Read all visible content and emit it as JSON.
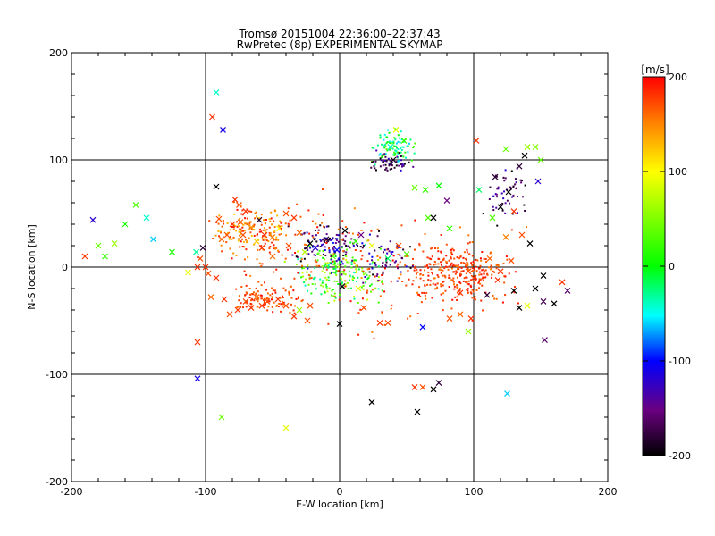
{
  "chart_data": {
    "type": "scatter",
    "title": "Tromsø 20151004 22:36:00–22:37:43",
    "subtitle": "RwPretec (8p) EXPERIMENTAL SKYMAP",
    "xlabel": "E-W location [km]",
    "ylabel": "N-S location [km]",
    "xlim": [
      -200,
      200
    ],
    "ylim": [
      -200,
      200
    ],
    "x_ticks": [
      -200,
      -100,
      0,
      100,
      200
    ],
    "y_ticks": [
      -200,
      -100,
      0,
      100,
      200
    ],
    "grid": true,
    "colorbar": {
      "label": "[m/s]",
      "range": [
        -200,
        200
      ],
      "ticks": [
        200,
        100,
        0,
        -100,
        -200
      ],
      "colormap": "black-purple-blue-cyan-green-yellow-red"
    },
    "marker_types": [
      "dot",
      "x"
    ],
    "points": [
      {
        "x": -190,
        "y": 10,
        "v": 180,
        "m": "x"
      },
      {
        "x": -184,
        "y": 44,
        "v": -120,
        "m": "x"
      },
      {
        "x": -180,
        "y": 20,
        "v": 40,
        "m": "x"
      },
      {
        "x": -175,
        "y": 10,
        "v": 20,
        "m": "x"
      },
      {
        "x": -168,
        "y": 22,
        "v": 60,
        "m": "x"
      },
      {
        "x": -160,
        "y": 40,
        "v": 10,
        "m": "x"
      },
      {
        "x": -152,
        "y": 58,
        "v": 30,
        "m": "x"
      },
      {
        "x": -144,
        "y": 46,
        "v": -40,
        "m": "x"
      },
      {
        "x": -139,
        "y": 26,
        "v": -60,
        "m": "x"
      },
      {
        "x": -125,
        "y": 14,
        "v": 10,
        "m": "x"
      },
      {
        "x": -113,
        "y": -5,
        "v": 90,
        "m": "x"
      },
      {
        "x": -107,
        "y": 14,
        "v": -30,
        "m": "x"
      },
      {
        "x": -102,
        "y": 18,
        "v": -180,
        "m": "x"
      },
      {
        "x": -100,
        "y": 0,
        "v": 180,
        "m": "x"
      },
      {
        "x": -98,
        "y": -6,
        "v": 170,
        "m": "x"
      },
      {
        "x": -92,
        "y": 163,
        "v": -40,
        "m": "x"
      },
      {
        "x": -95,
        "y": 140,
        "v": 180,
        "m": "x"
      },
      {
        "x": -92,
        "y": 75,
        "v": -200,
        "m": "x"
      },
      {
        "x": -90,
        "y": 45,
        "v": 170,
        "m": "x"
      },
      {
        "x": -87,
        "y": 128,
        "v": -110,
        "m": "x"
      },
      {
        "x": -78,
        "y": 63,
        "v": 180,
        "m": "x"
      },
      {
        "x": -74,
        "y": 42,
        "v": 160,
        "m": "x"
      },
      {
        "x": -72,
        "y": 30,
        "v": 170,
        "m": "x"
      },
      {
        "x": -66,
        "y": 37,
        "v": 140,
        "m": "x"
      },
      {
        "x": -62,
        "y": 24,
        "v": 120,
        "m": "x"
      },
      {
        "x": -60,
        "y": 44,
        "v": -180,
        "m": "x"
      },
      {
        "x": -56,
        "y": 30,
        "v": 180,
        "m": "x"
      },
      {
        "x": -50,
        "y": 28,
        "v": 150,
        "m": "x"
      },
      {
        "x": -45,
        "y": 36,
        "v": 100,
        "m": "x"
      },
      {
        "x": -40,
        "y": 50,
        "v": 170,
        "m": "x"
      },
      {
        "x": -34,
        "y": 46,
        "v": 180,
        "m": "x"
      },
      {
        "x": -30,
        "y": 32,
        "v": 160,
        "m": "x"
      },
      {
        "x": -26,
        "y": 14,
        "v": 70,
        "m": "x"
      },
      {
        "x": -22,
        "y": 22,
        "v": -200,
        "m": "x"
      },
      {
        "x": -18,
        "y": 18,
        "v": -120,
        "m": "x"
      },
      {
        "x": -10,
        "y": 26,
        "v": -180,
        "m": "x"
      },
      {
        "x": -5,
        "y": 10,
        "v": 30,
        "m": "x"
      },
      {
        "x": -2,
        "y": 16,
        "v": -100,
        "m": "x"
      },
      {
        "x": 4,
        "y": 34,
        "v": -200,
        "m": "x"
      },
      {
        "x": 12,
        "y": 24,
        "v": 20,
        "m": "x"
      },
      {
        "x": 16,
        "y": 30,
        "v": -150,
        "m": "x"
      },
      {
        "x": 24,
        "y": 20,
        "v": 90,
        "m": "x"
      },
      {
        "x": 36,
        "y": 8,
        "v": -20,
        "m": "x"
      },
      {
        "x": 44,
        "y": 20,
        "v": 170,
        "m": "x"
      },
      {
        "x": 50,
        "y": 12,
        "v": 30,
        "m": "x"
      },
      {
        "x": 40,
        "y": 100,
        "v": -190,
        "m": "x"
      },
      {
        "x": 38,
        "y": 112,
        "v": -40,
        "m": "x"
      },
      {
        "x": 42,
        "y": 128,
        "v": 90,
        "m": "x"
      },
      {
        "x": 48,
        "y": 118,
        "v": 20,
        "m": "x"
      },
      {
        "x": 56,
        "y": 74,
        "v": 40,
        "m": "x"
      },
      {
        "x": 64,
        "y": 72,
        "v": 20,
        "m": "x"
      },
      {
        "x": 66,
        "y": 46,
        "v": 30,
        "m": "x"
      },
      {
        "x": 74,
        "y": 76,
        "v": 0,
        "m": "x"
      },
      {
        "x": 70,
        "y": 46,
        "v": -200,
        "m": "x"
      },
      {
        "x": 80,
        "y": 62,
        "v": -150,
        "m": "x"
      },
      {
        "x": 82,
        "y": 36,
        "v": 20,
        "m": "x"
      },
      {
        "x": 102,
        "y": 118,
        "v": 180,
        "m": "x"
      },
      {
        "x": 104,
        "y": 72,
        "v": -20,
        "m": "x"
      },
      {
        "x": 114,
        "y": 46,
        "v": 30,
        "m": "x"
      },
      {
        "x": 116,
        "y": 84,
        "v": -180,
        "m": "x"
      },
      {
        "x": 120,
        "y": 56,
        "v": -200,
        "m": "x"
      },
      {
        "x": 124,
        "y": 110,
        "v": 40,
        "m": "x"
      },
      {
        "x": 126,
        "y": 70,
        "v": -200,
        "m": "x"
      },
      {
        "x": 130,
        "y": 52,
        "v": 180,
        "m": "x"
      },
      {
        "x": 134,
        "y": 94,
        "v": -180,
        "m": "x"
      },
      {
        "x": 136,
        "y": 30,
        "v": 170,
        "m": "x"
      },
      {
        "x": 138,
        "y": 104,
        "v": -200,
        "m": "x"
      },
      {
        "x": 140,
        "y": 112,
        "v": 60,
        "m": "x"
      },
      {
        "x": 142,
        "y": 22,
        "v": -200,
        "m": "x"
      },
      {
        "x": 146,
        "y": 112,
        "v": 50,
        "m": "x"
      },
      {
        "x": 148,
        "y": 80,
        "v": -120,
        "m": "x"
      },
      {
        "x": 150,
        "y": 100,
        "v": 40,
        "m": "x"
      },
      {
        "x": 112,
        "y": 8,
        "v": 160,
        "m": "x"
      },
      {
        "x": 120,
        "y": -4,
        "v": 180,
        "m": "x"
      },
      {
        "x": 124,
        "y": 28,
        "v": 150,
        "m": "x"
      },
      {
        "x": 128,
        "y": 6,
        "v": 170,
        "m": "x"
      },
      {
        "x": 130,
        "y": -22,
        "v": -200,
        "m": "x"
      },
      {
        "x": 134,
        "y": -38,
        "v": -200,
        "m": "x"
      },
      {
        "x": 140,
        "y": -36,
        "v": 90,
        "m": "x"
      },
      {
        "x": 146,
        "y": -20,
        "v": -200,
        "m": "x"
      },
      {
        "x": 152,
        "y": -32,
        "v": -170,
        "m": "x"
      },
      {
        "x": 160,
        "y": -34,
        "v": -200,
        "m": "x"
      },
      {
        "x": 166,
        "y": -14,
        "v": 180,
        "m": "x"
      },
      {
        "x": 170,
        "y": -22,
        "v": -160,
        "m": "x"
      },
      {
        "x": 153,
        "y": -68,
        "v": -160,
        "m": "x"
      },
      {
        "x": 125,
        "y": -118,
        "v": -60,
        "m": "x"
      },
      {
        "x": 100,
        "y": -10,
        "v": 180,
        "m": "x"
      },
      {
        "x": 96,
        "y": -4,
        "v": 170,
        "m": "x"
      },
      {
        "x": 90,
        "y": -24,
        "v": 180,
        "m": "x"
      },
      {
        "x": 90,
        "y": -44,
        "v": 160,
        "m": "x"
      },
      {
        "x": 96,
        "y": -60,
        "v": 60,
        "m": "x"
      },
      {
        "x": 98,
        "y": -48,
        "v": 180,
        "m": "x"
      },
      {
        "x": 82,
        "y": -48,
        "v": 170,
        "m": "x"
      },
      {
        "x": 62,
        "y": -56,
        "v": -100,
        "m": "x"
      },
      {
        "x": 36,
        "y": -52,
        "v": 170,
        "m": "x"
      },
      {
        "x": 30,
        "y": -52,
        "v": 180,
        "m": "x"
      },
      {
        "x": 18,
        "y": -38,
        "v": 170,
        "m": "x"
      },
      {
        "x": 14,
        "y": -20,
        "v": 90,
        "m": "x"
      },
      {
        "x": 2,
        "y": -18,
        "v": -200,
        "m": "x"
      },
      {
        "x": 0,
        "y": -53,
        "v": -200,
        "m": "x"
      },
      {
        "x": -22,
        "y": -36,
        "v": 170,
        "m": "x"
      },
      {
        "x": -30,
        "y": -40,
        "v": 60,
        "m": "x"
      },
      {
        "x": -34,
        "y": -46,
        "v": 180,
        "m": "x"
      },
      {
        "x": -40,
        "y": -36,
        "v": 170,
        "m": "x"
      },
      {
        "x": -46,
        "y": -30,
        "v": 180,
        "m": "x"
      },
      {
        "x": -54,
        "y": -32,
        "v": 170,
        "m": "x"
      },
      {
        "x": -58,
        "y": -36,
        "v": 180,
        "m": "x"
      },
      {
        "x": -62,
        "y": -28,
        "v": 160,
        "m": "x"
      },
      {
        "x": -66,
        "y": -38,
        "v": 180,
        "m": "x"
      },
      {
        "x": -70,
        "y": -32,
        "v": 170,
        "m": "x"
      },
      {
        "x": -76,
        "y": -40,
        "v": 180,
        "m": "x"
      },
      {
        "x": -82,
        "y": -44,
        "v": 170,
        "m": "x"
      },
      {
        "x": -86,
        "y": -30,
        "v": 180,
        "m": "x"
      },
      {
        "x": -96,
        "y": -28,
        "v": 160,
        "m": "x"
      },
      {
        "x": -92,
        "y": -10,
        "v": 180,
        "m": "x"
      },
      {
        "x": -106,
        "y": -70,
        "v": 180,
        "m": "x"
      },
      {
        "x": -106,
        "y": -104,
        "v": -110,
        "m": "x"
      },
      {
        "x": -88,
        "y": -140,
        "v": 40,
        "m": "x"
      },
      {
        "x": -40,
        "y": -150,
        "v": 90,
        "m": "x"
      },
      {
        "x": 24,
        "y": -126,
        "v": -200,
        "m": "x"
      },
      {
        "x": 56,
        "y": -112,
        "v": 180,
        "m": "x"
      },
      {
        "x": 62,
        "y": -112,
        "v": 170,
        "m": "x"
      },
      {
        "x": 58,
        "y": -135,
        "v": -200,
        "m": "x"
      },
      {
        "x": 70,
        "y": -114,
        "v": -200,
        "m": "x"
      },
      {
        "x": 74,
        "y": -108,
        "v": -180,
        "m": "x"
      },
      {
        "x": -24,
        "y": -50,
        "v": 170,
        "m": "x"
      },
      {
        "x": -75,
        "y": 58,
        "v": 170,
        "m": "x"
      },
      {
        "x": -70,
        "y": 52,
        "v": 180,
        "m": "x"
      },
      {
        "x": -80,
        "y": 40,
        "v": 180,
        "m": "x"
      },
      {
        "x": -84,
        "y": 30,
        "v": 170,
        "m": "x"
      },
      {
        "x": -88,
        "y": 26,
        "v": 160,
        "m": "x"
      },
      {
        "x": -50,
        "y": 10,
        "v": 160,
        "m": "x"
      },
      {
        "x": -58,
        "y": 18,
        "v": 180,
        "m": "x"
      },
      {
        "x": -38,
        "y": 20,
        "v": 170,
        "m": "x"
      },
      {
        "x": -106,
        "y": 0,
        "v": 180,
        "m": "x"
      },
      {
        "x": -104,
        "y": 8,
        "v": 170,
        "m": "x"
      },
      {
        "x": 152,
        "y": -8,
        "v": -200,
        "m": "x"
      },
      {
        "x": 118,
        "y": -12,
        "v": 180,
        "m": "x"
      },
      {
        "x": 110,
        "y": -26,
        "v": -180,
        "m": "x"
      }
    ]
  }
}
